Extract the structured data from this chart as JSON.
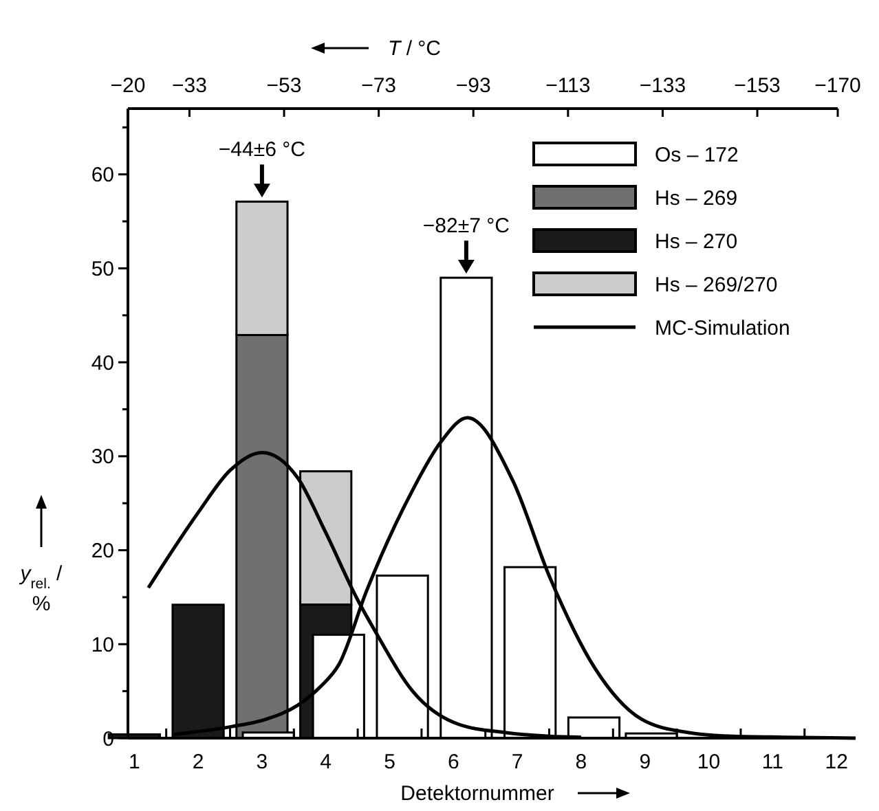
{
  "chart_data": {
    "type": "bar",
    "xlabel": "Detektornummer",
    "ylabel": "y$_{rel.}$ / %",
    "x2label": "T / °C",
    "xlim": [
      0.9,
      12.3
    ],
    "xticks": [
      {
        "value": 1,
        "label": "1"
      },
      {
        "value": 2,
        "label": "2"
      },
      {
        "value": 3,
        "label": "3"
      },
      {
        "value": 4,
        "label": "4"
      },
      {
        "value": 5,
        "label": "5"
      },
      {
        "value": 6,
        "label": "6"
      },
      {
        "value": 7,
        "label": "7"
      },
      {
        "value": 8,
        "label": "8"
      },
      {
        "value": 9,
        "label": "9"
      },
      {
        "value": 10,
        "label": "10"
      },
      {
        "value": 11,
        "label": "11"
      },
      {
        "value": 12,
        "label": "12"
      },
      {
        "value": 1.5,
        "label": null
      },
      {
        "value": 2.5,
        "label": null
      },
      {
        "value": 3.5,
        "label": null
      },
      {
        "value": 4.5,
        "label": null
      },
      {
        "value": 5.5,
        "label": null
      },
      {
        "value": 6.5,
        "label": null
      },
      {
        "value": 7.5,
        "label": null
      },
      {
        "value": 8.5,
        "label": null
      },
      {
        "value": 9.5,
        "label": null
      },
      {
        "value": 10.5,
        "label": null
      },
      {
        "value": 11.5,
        "label": null
      }
    ],
    "x2lim": [
      -20,
      -170
    ],
    "x2ticks": [
      {
        "value": -20,
        "label": "−20"
      },
      {
        "value": -33,
        "label": "−33"
      },
      {
        "value": -53,
        "label": "−53"
      },
      {
        "value": -73,
        "label": "−73"
      },
      {
        "value": -93,
        "label": "−93"
      },
      {
        "value": -113,
        "label": "−113"
      },
      {
        "value": -133,
        "label": "−133"
      },
      {
        "value": -153,
        "label": "−153"
      },
      {
        "value": -170,
        "label": "−170"
      }
    ],
    "ylim": [
      0,
      67
    ],
    "yticks": [
      0,
      10,
      20,
      30,
      40,
      50,
      60,
      {
        "value": 5,
        "label": null
      },
      {
        "value": 15,
        "label": null
      },
      {
        "value": 25,
        "label": null
      },
      {
        "value": 35,
        "label": null
      },
      {
        "value": 45,
        "label": null
      },
      {
        "value": 55,
        "label": null
      },
      {
        "value": 65,
        "label": null
      }
    ],
    "legend": "top right",
    "annotations": [
      {
        "text": "−44±6 °C",
        "x": 3,
        "y": 57.1
      },
      {
        "text": "−82±7 °C",
        "x": 6.2,
        "y": 49
      }
    ],
    "series": [
      {
        "name": "Os – 172",
        "color": "#ffffff",
        "x": [
          3.1,
          4.2,
          5.2,
          6.2,
          7.2,
          8.2,
          9.1
        ],
        "values": [
          0.6,
          11,
          17.3,
          49,
          18.2,
          2.2,
          0.5
        ]
      },
      {
        "name": "Hs – 269",
        "color": "#707070",
        "x": [
          3
        ],
        "values": [
          42.9
        ]
      },
      {
        "name": "Hs – 270",
        "color": "#1a1a1a",
        "x": [
          1,
          2,
          4
        ],
        "values": [
          0.4,
          14.2,
          14.2
        ]
      },
      {
        "name": "Hs – 269/270",
        "color": "#cccccc",
        "x": [
          3,
          4
        ],
        "base": [
          42.9,
          14.2
        ],
        "values": [
          14.2,
          14.2
        ]
      },
      {
        "name": "MC-Simulation",
        "type": "line",
        "color": "#000000",
        "x": [
          1.22,
          1.6,
          2.0,
          2.5,
          3.0,
          3.56,
          3.99,
          4.5,
          4.78,
          5.36,
          6.07,
          6.8,
          7.5,
          8.0
        ],
        "values": [
          16.0,
          20.0,
          24.0,
          28.5,
          30.4,
          27.7,
          22.0,
          14.7,
          11.3,
          5.0,
          1.5,
          0.6,
          0.2,
          0.1
        ]
      },
      {
        "type": "line",
        "color": "#000000",
        "x": [
          1.62,
          2.5,
          3.06,
          3.56,
          3.92,
          4.21,
          4.64,
          5.36,
          5.8,
          6.22,
          6.93,
          7.51,
          8.22,
          8.95,
          9.67,
          10.38,
          11.2,
          12.3
        ],
        "values": [
          0.4,
          1.2,
          2.0,
          3.5,
          5.5,
          7.9,
          15.7,
          26.4,
          31.5,
          34.1,
          27.4,
          17.1,
          7.4,
          2.0,
          0.6,
          0.2,
          0.1,
          0
        ]
      }
    ]
  }
}
